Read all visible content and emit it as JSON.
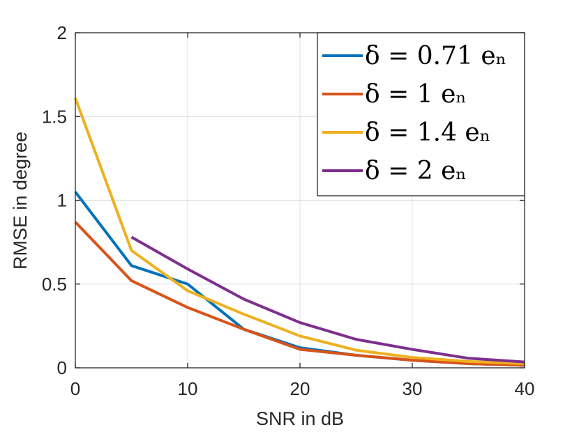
{
  "chart_data": {
    "type": "line",
    "title": "",
    "xlabel": "SNR in dB",
    "ylabel": "RMSE in degree",
    "xlim": [
      0,
      40
    ],
    "ylim": [
      0,
      2
    ],
    "xticks": [
      0,
      10,
      20,
      30,
      40
    ],
    "yticks": [
      0,
      0.5,
      1,
      1.5,
      2
    ],
    "xtick_labels": [
      "0",
      "10",
      "20",
      "30",
      "40"
    ],
    "ytick_labels": [
      "0",
      "0.5",
      "1",
      "1.5",
      "2"
    ],
    "grid": true,
    "legend_position": "top-right",
    "series": [
      {
        "name": "δ = 0.71 eₙ",
        "color": "#0072BD",
        "x": [
          0,
          5,
          10,
          15,
          20,
          25,
          30,
          35,
          40
        ],
        "values": [
          1.05,
          0.61,
          0.5,
          0.23,
          0.12,
          0.075,
          0.045,
          0.025,
          0.015
        ]
      },
      {
        "name": "δ = 1 eₙ",
        "color": "#D95319",
        "x": [
          0,
          5,
          10,
          15,
          20,
          25,
          30,
          35,
          40
        ],
        "values": [
          0.87,
          0.52,
          0.36,
          0.23,
          0.11,
          0.075,
          0.045,
          0.025,
          0.015
        ]
      },
      {
        "name": "δ = 1.4 eₙ",
        "color": "#EDB120",
        "x": [
          0,
          5,
          10,
          15,
          20,
          25,
          30,
          35,
          40
        ],
        "values": [
          1.61,
          0.7,
          0.46,
          0.32,
          0.19,
          0.105,
          0.062,
          0.038,
          0.025
        ]
      },
      {
        "name": "δ = 2 eₙ",
        "color": "#7E2F8E",
        "x": [
          5,
          10,
          15,
          20,
          25,
          30,
          35,
          40
        ],
        "values": [
          0.78,
          0.59,
          0.41,
          0.27,
          0.17,
          0.11,
          0.057,
          0.035
        ]
      }
    ]
  }
}
